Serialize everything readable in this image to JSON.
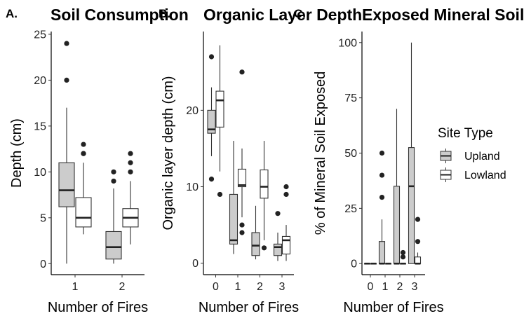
{
  "legend": {
    "title": "Site Type",
    "items": [
      {
        "label": "Upland",
        "color": "#cccccc"
      },
      {
        "label": "Lowland",
        "color": "#ffffff"
      }
    ]
  },
  "chart_data": [
    {
      "type": "boxplot",
      "panel_label": "A.",
      "title": "Soil Consumption",
      "xlabel": "Number of Fires",
      "ylabel": "Depth (cm)",
      "categories": [
        "1",
        "2"
      ],
      "yticks": [
        0,
        5,
        10,
        15,
        20,
        25
      ],
      "ylim": [
        -1.2,
        25.3
      ],
      "groups": [
        "Upland",
        "Lowland"
      ],
      "boxes": [
        {
          "category": "1",
          "group": "Upland",
          "min": 0,
          "q1": 6.2,
          "median": 8,
          "q3": 11,
          "max": 17,
          "outliers": [
            20,
            24
          ]
        },
        {
          "category": "1",
          "group": "Lowland",
          "min": 3.2,
          "q1": 4,
          "median": 5,
          "q3": 7.2,
          "max": 11,
          "outliers": [
            12,
            12,
            13
          ]
        },
        {
          "category": "2",
          "group": "Upland",
          "min": 0,
          "q1": 0.5,
          "median": 1.8,
          "q3": 3.5,
          "max": 8.2,
          "outliers": [
            9,
            10
          ]
        },
        {
          "category": "2",
          "group": "Lowland",
          "min": 2.1,
          "q1": 4,
          "median": 5,
          "q3": 6,
          "max": 9,
          "outliers": [
            10,
            11,
            12
          ]
        }
      ]
    },
    {
      "type": "boxplot",
      "panel_label": "B.",
      "title": "Organic Layer Depth",
      "xlabel": "Number of Fires",
      "ylabel": "Organic layer depth (cm)",
      "categories": [
        "0",
        "1",
        "2",
        "3"
      ],
      "yticks": [
        0,
        10,
        20
      ],
      "ylim": [
        -1.5,
        30.3
      ],
      "groups": [
        "Upland",
        "Lowland"
      ],
      "boxes": [
        {
          "category": "0",
          "group": "Upland",
          "min": 14,
          "q1": 17,
          "median": 17.5,
          "q3": 20,
          "max": 23,
          "outliers": [
            11,
            27
          ]
        },
        {
          "category": "0",
          "group": "Lowland",
          "min": 12,
          "q1": 17.8,
          "median": 21.3,
          "q3": 22.5,
          "max": 28.5,
          "outliers": [
            9
          ]
        },
        {
          "category": "1",
          "group": "Upland",
          "min": 1.2,
          "q1": 2.5,
          "median": 3,
          "q3": 9,
          "max": 16,
          "outliers": []
        },
        {
          "category": "1",
          "group": "Lowland",
          "min": 6,
          "q1": 10,
          "median": 10.2,
          "q3": 12.3,
          "max": 15,
          "outliers": [
            4,
            5,
            25
          ]
        },
        {
          "category": "2",
          "group": "Upland",
          "min": 0.5,
          "q1": 1,
          "median": 2.3,
          "q3": 4,
          "max": 7.5,
          "outliers": []
        },
        {
          "category": "2",
          "group": "Lowland",
          "min": 3,
          "q1": 8.5,
          "median": 10,
          "q3": 12.2,
          "max": 16,
          "outliers": [
            2
          ]
        },
        {
          "category": "3",
          "group": "Upland",
          "min": 0.3,
          "q1": 1,
          "median": 2.1,
          "q3": 2.5,
          "max": 4,
          "outliers": [
            6.5
          ]
        },
        {
          "category": "3",
          "group": "Lowland",
          "min": 0.3,
          "q1": 1.2,
          "median": 3,
          "q3": 3.5,
          "max": 5,
          "outliers": [
            9,
            10
          ]
        }
      ]
    },
    {
      "type": "boxplot",
      "panel_label": "C.",
      "title": "Exposed Mineral Soil",
      "xlabel": "Number of Fires",
      "ylabel": "% of Mineral Soil Exposed",
      "categories": [
        "0",
        "1",
        "2",
        "3"
      ],
      "yticks": [
        0,
        25,
        50,
        75,
        100
      ],
      "ylim": [
        -5,
        105
      ],
      "groups": [
        "Upland",
        "Lowland"
      ],
      "boxes": [
        {
          "category": "0",
          "group": "Upland",
          "min": 0,
          "q1": 0,
          "median": 0,
          "q3": 0,
          "max": 0,
          "outliers": []
        },
        {
          "category": "0",
          "group": "Lowland",
          "min": 0,
          "q1": 0,
          "median": 0,
          "q3": 0,
          "max": 0,
          "outliers": []
        },
        {
          "category": "1",
          "group": "Upland",
          "min": 0,
          "q1": 0,
          "median": 0,
          "q3": 10,
          "max": 20,
          "outliers": [
            30,
            40,
            50
          ]
        },
        {
          "category": "1",
          "group": "Lowland",
          "min": 0,
          "q1": 0,
          "median": 0,
          "q3": 0,
          "max": 0,
          "outliers": []
        },
        {
          "category": "2",
          "group": "Upland",
          "min": 0,
          "q1": 0,
          "median": 0,
          "q3": 35,
          "max": 70,
          "outliers": []
        },
        {
          "category": "2",
          "group": "Lowland",
          "min": 0,
          "q1": 0,
          "median": 0,
          "q3": 0,
          "max": 0,
          "outliers": [
            3,
            5
          ]
        },
        {
          "category": "3",
          "group": "Upland",
          "min": 0,
          "q1": 0,
          "median": 35,
          "q3": 52.5,
          "max": 100,
          "outliers": []
        },
        {
          "category": "3",
          "group": "Lowland",
          "min": 0,
          "q1": 0,
          "median": 0,
          "q3": 3,
          "max": 5,
          "outliers": [
            10,
            20
          ]
        }
      ]
    }
  ]
}
